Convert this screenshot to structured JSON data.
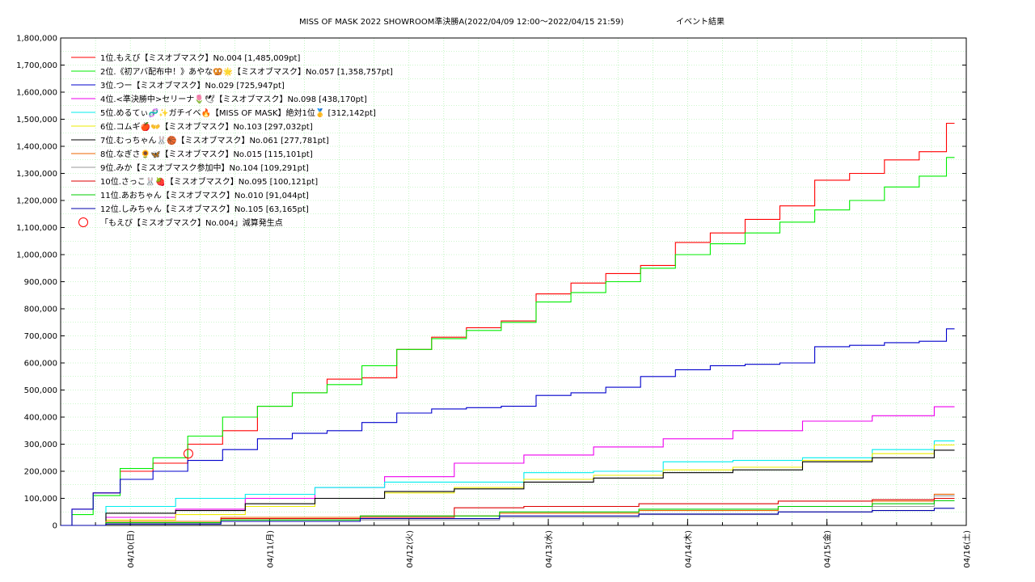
{
  "chart_data": {
    "type": "line",
    "title": "MISS OF MASK 2022 SHOWROOM準決勝A(2022/04/09 12:00～2022/04/15 21:59)",
    "title_suffix": "イベント結果",
    "xlabel": "",
    "ylabel": "",
    "grid": true,
    "legend_position": "top-left",
    "xlim": [
      "2022/04/09 12:00",
      "2022/04/16 00:00"
    ],
    "ylim": [
      0,
      1800000
    ],
    "y_ticks": [
      "0",
      "100,000",
      "200,000",
      "300,000",
      "400,000",
      "500,000",
      "600,000",
      "700,000",
      "800,000",
      "900,000",
      "1,000,000",
      "1,100,000",
      "1,200,000",
      "1,300,000",
      "1,400,000",
      "1,500,000",
      "1,600,000",
      "1,700,000",
      "1,800,000"
    ],
    "x_ticks": [
      "04/10(日)",
      "04/11(月)",
      "04/12(火)",
      "04/13(水)",
      "04/14(木)",
      "04/15(金)",
      "04/16(土)"
    ],
    "x_tick_dates": [
      "2022/04/10 00:00",
      "2022/04/11 00:00",
      "2022/04/12 00:00",
      "2022/04/13 00:00",
      "2022/04/14 00:00",
      "2022/04/15 00:00",
      "2022/04/16 00:00"
    ],
    "series": [
      {
        "name": "1位.もえび【ミスオブマスク】No.004 [1,485,009pt]",
        "color": "#ff0000",
        "x": [
          "2022/04/09 12:00",
          "2022/04/09 15:00",
          "2022/04/09 19:00",
          "2022/04/10 00:00",
          "2022/04/10 06:00",
          "2022/04/10 12:00",
          "2022/04/10 18:00",
          "2022/04/11 00:00",
          "2022/04/11 06:00",
          "2022/04/11 12:00",
          "2022/04/11 18:00",
          "2022/04/12 00:00",
          "2022/04/12 06:00",
          "2022/04/12 12:00",
          "2022/04/12 18:00",
          "2022/04/13 00:00",
          "2022/04/13 06:00",
          "2022/04/13 12:00",
          "2022/04/13 18:00",
          "2022/04/14 00:00",
          "2022/04/14 06:00",
          "2022/04/14 12:00",
          "2022/04/14 18:00",
          "2022/04/15 00:00",
          "2022/04/15 06:00",
          "2022/04/15 12:00",
          "2022/04/15 18:00",
          "2022/04/15 21:59"
        ],
        "y": [
          0,
          60000,
          120000,
          200000,
          230000,
          300000,
          350000,
          440000,
          490000,
          540000,
          545000,
          650000,
          695000,
          730000,
          755000,
          855000,
          895000,
          930000,
          960000,
          1045000,
          1080000,
          1130000,
          1180000,
          1275000,
          1300000,
          1350000,
          1380000,
          1485009
        ]
      },
      {
        "name": "2位.《初アバ配布中！》あやな🥨🌟【ミスオブマスク】No.057 [1,358,757pt]",
        "color": "#00ee00",
        "x": [
          "2022/04/09 12:00",
          "2022/04/09 15:00",
          "2022/04/09 19:00",
          "2022/04/10 00:00",
          "2022/04/10 06:00",
          "2022/04/10 12:00",
          "2022/04/10 18:00",
          "2022/04/11 00:00",
          "2022/04/11 06:00",
          "2022/04/11 12:00",
          "2022/04/11 18:00",
          "2022/04/12 00:00",
          "2022/04/12 06:00",
          "2022/04/12 12:00",
          "2022/04/12 18:00",
          "2022/04/13 00:00",
          "2022/04/13 06:00",
          "2022/04/13 12:00",
          "2022/04/13 18:00",
          "2022/04/14 00:00",
          "2022/04/14 06:00",
          "2022/04/14 12:00",
          "2022/04/14 18:00",
          "2022/04/15 00:00",
          "2022/04/15 06:00",
          "2022/04/15 12:00",
          "2022/04/15 18:00",
          "2022/04/15 21:59"
        ],
        "y": [
          0,
          40000,
          110000,
          210000,
          250000,
          330000,
          400000,
          440000,
          490000,
          520000,
          590000,
          650000,
          690000,
          720000,
          750000,
          825000,
          860000,
          900000,
          950000,
          1000000,
          1040000,
          1080000,
          1120000,
          1165000,
          1200000,
          1250000,
          1290000,
          1358757
        ]
      },
      {
        "name": "3位.つー【ミスオブマスク】No.029 [725,947pt]",
        "color": "#0000cc",
        "x": [
          "2022/04/09 12:00",
          "2022/04/09 15:00",
          "2022/04/09 19:00",
          "2022/04/10 00:00",
          "2022/04/10 06:00",
          "2022/04/10 12:00",
          "2022/04/10 18:00",
          "2022/04/11 00:00",
          "2022/04/11 06:00",
          "2022/04/11 12:00",
          "2022/04/11 18:00",
          "2022/04/12 00:00",
          "2022/04/12 06:00",
          "2022/04/12 12:00",
          "2022/04/12 18:00",
          "2022/04/13 00:00",
          "2022/04/13 06:00",
          "2022/04/13 12:00",
          "2022/04/13 18:00",
          "2022/04/14 00:00",
          "2022/04/14 06:00",
          "2022/04/14 12:00",
          "2022/04/14 18:00",
          "2022/04/15 00:00",
          "2022/04/15 06:00",
          "2022/04/15 12:00",
          "2022/04/15 18:00",
          "2022/04/15 21:59"
        ],
        "y": [
          0,
          60000,
          120000,
          170000,
          200000,
          240000,
          280000,
          320000,
          340000,
          350000,
          380000,
          415000,
          430000,
          435000,
          440000,
          480000,
          490000,
          510000,
          550000,
          575000,
          590000,
          595000,
          600000,
          660000,
          665000,
          675000,
          680000,
          725947
        ]
      },
      {
        "name": "4位.<準決勝中>セリーナ🌷🕊【ミスオブマスク】No.098 [438,170pt]",
        "color": "#ee00ee",
        "x": [
          "2022/04/09 12:00",
          "2022/04/10 00:00",
          "2022/04/10 12:00",
          "2022/04/11 00:00",
          "2022/04/11 12:00",
          "2022/04/12 00:00",
          "2022/04/12 12:00",
          "2022/04/13 00:00",
          "2022/04/13 12:00",
          "2022/04/14 00:00",
          "2022/04/14 12:00",
          "2022/04/15 00:00",
          "2022/04/15 12:00",
          "2022/04/15 21:59"
        ],
        "y": [
          0,
          30000,
          60000,
          100000,
          140000,
          180000,
          230000,
          260000,
          290000,
          320000,
          350000,
          385000,
          405000,
          438170
        ]
      },
      {
        "name": "5位.めるてぃ🧬✨ガチイベ🔥【MISS OF MASK】絶対1位🥇 [312,142pt]",
        "color": "#00eeee",
        "x": [
          "2022/04/09 12:00",
          "2022/04/10 00:00",
          "2022/04/10 12:00",
          "2022/04/11 00:00",
          "2022/04/11 12:00",
          "2022/04/12 00:00",
          "2022/04/12 12:00",
          "2022/04/13 00:00",
          "2022/04/13 12:00",
          "2022/04/14 00:00",
          "2022/04/14 12:00",
          "2022/04/15 00:00",
          "2022/04/15 12:00",
          "2022/04/15 21:59"
        ],
        "y": [
          0,
          70000,
          100000,
          115000,
          140000,
          160000,
          160000,
          195000,
          200000,
          235000,
          240000,
          250000,
          280000,
          312142
        ]
      },
      {
        "name": "6位.コムギ🍎👐【ミスオブマスク】No.103 [297,032pt]",
        "color": "#eeee00",
        "x": [
          "2022/04/09 12:00",
          "2022/04/10 00:00",
          "2022/04/10 12:00",
          "2022/04/11 00:00",
          "2022/04/11 12:00",
          "2022/04/12 00:00",
          "2022/04/12 12:00",
          "2022/04/13 00:00",
          "2022/04/13 12:00",
          "2022/04/14 00:00",
          "2022/04/14 12:00",
          "2022/04/15 00:00",
          "2022/04/15 12:00",
          "2022/04/15 21:59"
        ],
        "y": [
          0,
          20000,
          40000,
          70000,
          100000,
          120000,
          140000,
          170000,
          185000,
          205000,
          215000,
          240000,
          265000,
          297032
        ]
      },
      {
        "name": "7位.むっちゃん🐰🏀【ミスオブマスク】No.061 [277,781pt]",
        "color": "#000000",
        "x": [
          "2022/04/09 12:00",
          "2022/04/10 00:00",
          "2022/04/10 12:00",
          "2022/04/11 00:00",
          "2022/04/11 12:00",
          "2022/04/12 00:00",
          "2022/04/12 12:00",
          "2022/04/13 00:00",
          "2022/04/13 12:00",
          "2022/04/14 00:00",
          "2022/04/14 12:00",
          "2022/04/15 00:00",
          "2022/04/15 12:00",
          "2022/04/15 21:59"
        ],
        "y": [
          0,
          45000,
          55000,
          80000,
          100000,
          125000,
          135000,
          160000,
          175000,
          195000,
          205000,
          235000,
          250000,
          277781
        ]
      },
      {
        "name": "8位.なぎさ🌻🦋【ミスオブマスク】No.015 [115,101pt]",
        "color": "#ee6600",
        "x": [
          "2022/04/09 12:00",
          "2022/04/10 00:00",
          "2022/04/11 00:00",
          "2022/04/12 00:00",
          "2022/04/13 00:00",
          "2022/04/14 00:00",
          "2022/04/15 00:00",
          "2022/04/15 12:00",
          "2022/04/15 21:59"
        ],
        "y": [
          0,
          15000,
          30000,
          35000,
          45000,
          55000,
          70000,
          90000,
          115101
        ]
      },
      {
        "name": "9位.みか【ミスオブマスク参加中】No.104 [109,291pt]",
        "color": "#999999",
        "x": [
          "2022/04/09 12:00",
          "2022/04/10 00:00",
          "2022/04/11 00:00",
          "2022/04/12 00:00",
          "2022/04/13 00:00",
          "2022/04/14 00:00",
          "2022/04/15 00:00",
          "2022/04/15 12:00",
          "2022/04/15 21:59"
        ],
        "y": [
          0,
          5000,
          15000,
          20000,
          30000,
          40000,
          50000,
          70000,
          109291
        ]
      },
      {
        "name": "10位.さっこ🐰🍓【ミスオブマスク】No.095 [100,121pt]",
        "color": "#dd0000",
        "x": [
          "2022/04/09 12:00",
          "2022/04/10 00:00",
          "2022/04/11 00:00",
          "2022/04/12 00:00",
          "2022/04/12 12:00",
          "2022/04/13 00:00",
          "2022/04/14 00:00",
          "2022/04/15 00:00",
          "2022/04/15 12:00",
          "2022/04/15 21:59"
        ],
        "y": [
          0,
          10000,
          25000,
          30000,
          65000,
          70000,
          80000,
          90000,
          95000,
          100121
        ]
      },
      {
        "name": "11位.あおちゃん【ミスオブマスク】No.010 [91,044pt]",
        "color": "#00cc00",
        "x": [
          "2022/04/09 12:00",
          "2022/04/10 00:00",
          "2022/04/11 00:00",
          "2022/04/12 00:00",
          "2022/04/13 00:00",
          "2022/04/14 00:00",
          "2022/04/15 00:00",
          "2022/04/15 12:00",
          "2022/04/15 21:59"
        ],
        "y": [
          0,
          10000,
          20000,
          35000,
          50000,
          60000,
          70000,
          80000,
          91044
        ]
      },
      {
        "name": "12位.しみちゃん【ミスオブマスク】No.105 [63,165pt]",
        "color": "#0000aa",
        "x": [
          "2022/04/09 12:00",
          "2022/04/10 00:00",
          "2022/04/11 00:00",
          "2022/04/12 00:00",
          "2022/04/13 00:00",
          "2022/04/14 00:00",
          "2022/04/15 00:00",
          "2022/04/15 12:00",
          "2022/04/15 21:59"
        ],
        "y": [
          0,
          5000,
          15000,
          25000,
          35000,
          42000,
          50000,
          55000,
          63165
        ]
      }
    ],
    "markers": [
      {
        "name": "「もえび【ミスオブマスク】No.004」減算発生点",
        "symbol": "circle",
        "color": "#ff0000",
        "x": [
          "2022/04/10 10:00"
        ],
        "y": [
          265000
        ]
      }
    ]
  }
}
